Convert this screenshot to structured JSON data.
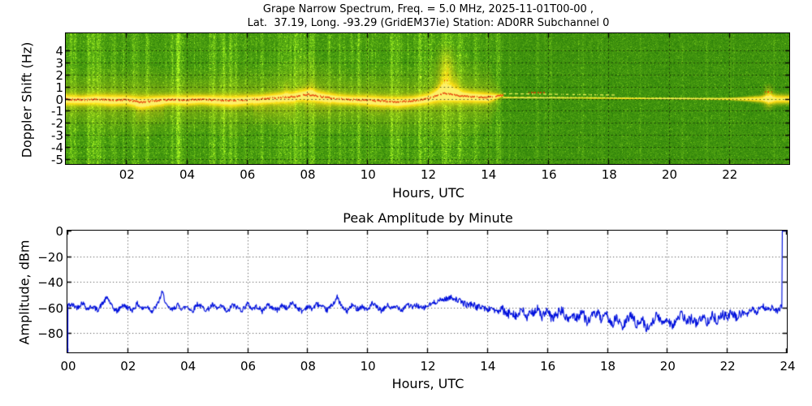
{
  "chart_data": [
    {
      "type": "heatmap",
      "title_line1": "Grape Narrow Spectrum, Freq. = 5.0 MHz, 2025-11-01T00-00 ,",
      "title_line2": "Lat.  37.19, Long. -93.29 (GridEM37ie) Station: AD0RR Subchannel 0",
      "xlabel": "Hours, UTC",
      "ylabel": "Doppler Shift (Hz)",
      "xlim": [
        0,
        24
      ],
      "ylim": [
        -5.4,
        5.4
      ],
      "xtick_hours": [
        2,
        4,
        6,
        8,
        10,
        12,
        14,
        16,
        18,
        20,
        22
      ],
      "xtick_labels": [
        "02",
        "04",
        "06",
        "08",
        "10",
        "12",
        "14",
        "16",
        "18",
        "20",
        "22"
      ],
      "ytick_hz": [
        4,
        3,
        2,
        1,
        0,
        -1,
        -2,
        -3,
        -4,
        -5
      ],
      "ytick_labels": [
        "4",
        "3",
        "2",
        "1",
        "0",
        "-1",
        "-2",
        "-3",
        "-4",
        "-5"
      ],
      "grid": "dotted",
      "colormap": {
        "bg_green": "#2d8c05",
        "bright_green": "#76c818",
        "band_yellow": "#f0ef2a",
        "band_core": "#fcf58c",
        "trace_red": "#e43000"
      },
      "trace_step_h": 0.5,
      "trace_hz": [
        -0.05,
        -0.1,
        -0.05,
        -0.12,
        -0.1,
        -0.3,
        -0.15,
        -0.08,
        -0.12,
        -0.06,
        -0.12,
        -0.18,
        -0.1,
        -0.02,
        0.08,
        0.15,
        0.35,
        0.15,
        -0.02,
        -0.08,
        -0.12,
        -0.2,
        -0.28,
        -0.18,
        0.0,
        0.45,
        0.25,
        0.15,
        0.1,
        0.3
      ],
      "band_halfwidth_step_h": 0.5,
      "band_halfwidth_hz": [
        0.5,
        0.45,
        0.5,
        0.55,
        0.5,
        0.6,
        0.5,
        0.45,
        0.5,
        0.45,
        0.5,
        0.55,
        0.5,
        0.45,
        0.5,
        0.55,
        0.65,
        0.55,
        0.5,
        0.45,
        0.5,
        0.5,
        0.55,
        0.5,
        0.55,
        0.85,
        0.65,
        0.55,
        0.5,
        0.07,
        0.06,
        0.06,
        0.05,
        0.06,
        0.05,
        0.06,
        0.05,
        0.06,
        0.05,
        0.06,
        0.06,
        0.07,
        0.07,
        0.08,
        0.1,
        0.18,
        0.3,
        0.45,
        0.4
      ],
      "red_trace_to_h": 14.5,
      "carrier_weak_line_a": {
        "from_h": 14.5,
        "to_h": 18.25,
        "hz_start": 0.42,
        "hz_end": 0.3
      },
      "carrier_weak_line_b": {
        "from_h": 14.5,
        "to_h": 24,
        "hz_start": 0.12,
        "hz_end": -0.02
      },
      "plumes": [
        {
          "hour": 12.62,
          "top_hz": 4.6,
          "halfwidth_h": 0.2,
          "strength": 1.0
        },
        {
          "hour": 12.95,
          "top_hz": 2.3,
          "halfwidth_h": 0.12,
          "strength": 0.5
        },
        {
          "hour": 8.15,
          "top_hz": 2.0,
          "halfwidth_h": 0.1,
          "strength": 0.35
        },
        {
          "hour": 7.3,
          "top_hz": 1.6,
          "halfwidth_h": 0.08,
          "strength": 0.3
        }
      ],
      "burst": {
        "hour": 23.3,
        "halfwidth_h": 0.14,
        "spread_hz": 1.2,
        "strength": 0.75
      },
      "red_marks": [
        {
          "from_h": 12.5,
          "to_h": 12.68,
          "hz": 1.5
        },
        {
          "from_h": 15.35,
          "to_h": 15.9,
          "hz": 0.5
        },
        {
          "from_h": 23.18,
          "to_h": 23.45,
          "hz": 0.55
        }
      ],
      "subfuzz": [
        {
          "from_h": 2.3,
          "to_h": 3.25,
          "to_hz": -2.2
        },
        {
          "from_h": 6.2,
          "to_h": 7.6,
          "to_hz": -2.3
        },
        {
          "from_h": 7.9,
          "to_h": 8.8,
          "to_hz": -1.8
        },
        {
          "from_h": 10.0,
          "to_h": 10.6,
          "to_hz": -1.5
        }
      ],
      "quiet_after_h": 14.5
    },
    {
      "type": "line",
      "title": "Peak Amplitude by Minute",
      "xlabel": "Hours, UTC",
      "ylabel": "Amplitude, dBm",
      "xlim": [
        0,
        24
      ],
      "ylim": [
        -95,
        0
      ],
      "xtick_hours": [
        0,
        2,
        4,
        6,
        8,
        10,
        12,
        14,
        16,
        18,
        20,
        22,
        24
      ],
      "xtick_labels": [
        "00",
        "02",
        "04",
        "06",
        "08",
        "10",
        "12",
        "14",
        "16",
        "18",
        "20",
        "22",
        "24"
      ],
      "ytick_vals": [
        0,
        -20,
        -40,
        -60,
        -80
      ],
      "ytick_labels": [
        "0",
        "−20",
        "−40",
        "−60",
        "−80"
      ],
      "grid": "dotted",
      "line_color": "#0010dd",
      "samples_per_hour": 6,
      "values_dbm": [
        -95,
        -58,
        -60,
        -56,
        -61,
        -59,
        -62,
        -57,
        -52,
        -60,
        -63,
        -58,
        -60,
        -62,
        -57,
        -61,
        -59,
        -63,
        -58,
        -48,
        -60,
        -62,
        -58,
        -61,
        -59,
        -63,
        -57,
        -60,
        -62,
        -58,
        -61,
        -59,
        -64,
        -58,
        -60,
        -62,
        -57,
        -61,
        -59,
        -63,
        -58,
        -60,
        -62,
        -58,
        -61,
        -56,
        -60,
        -63,
        -59,
        -61,
        -57,
        -60,
        -62,
        -58,
        -52,
        -60,
        -63,
        -58,
        -61,
        -59,
        -62,
        -57,
        -60,
        -63,
        -58,
        -61,
        -59,
        -62,
        -57,
        -60,
        -58,
        -61,
        -59,
        -57,
        -55,
        -54,
        -53,
        -52,
        -54,
        -56,
        -58,
        -57,
        -60,
        -59,
        -62,
        -60,
        -64,
        -61,
        -66,
        -63,
        -67,
        -62,
        -68,
        -64,
        -61,
        -67,
        -63,
        -69,
        -65,
        -62,
        -70,
        -66,
        -68,
        -63,
        -71,
        -67,
        -64,
        -70,
        -66,
        -73,
        -68,
        -76,
        -70,
        -65,
        -74,
        -69,
        -77,
        -71,
        -66,
        -72,
        -68,
        -74,
        -70,
        -65,
        -72,
        -68,
        -73,
        -67,
        -71,
        -66,
        -70,
        -65,
        -68,
        -64,
        -69,
        -63,
        -66,
        -61,
        -64,
        -58,
        -62,
        -60,
        -63,
        -59,
        0
      ],
      "noise_profile": [
        {
          "from_h": 0,
          "to_h": 13,
          "amp_db": 2.0
        },
        {
          "from_h": 13,
          "to_h": 14.5,
          "amp_db": 2.4
        },
        {
          "from_h": 14.5,
          "to_h": 22.5,
          "amp_db": 3.8
        },
        {
          "from_h": 22.5,
          "to_h": 24,
          "amp_db": 2.2
        }
      ]
    }
  ]
}
